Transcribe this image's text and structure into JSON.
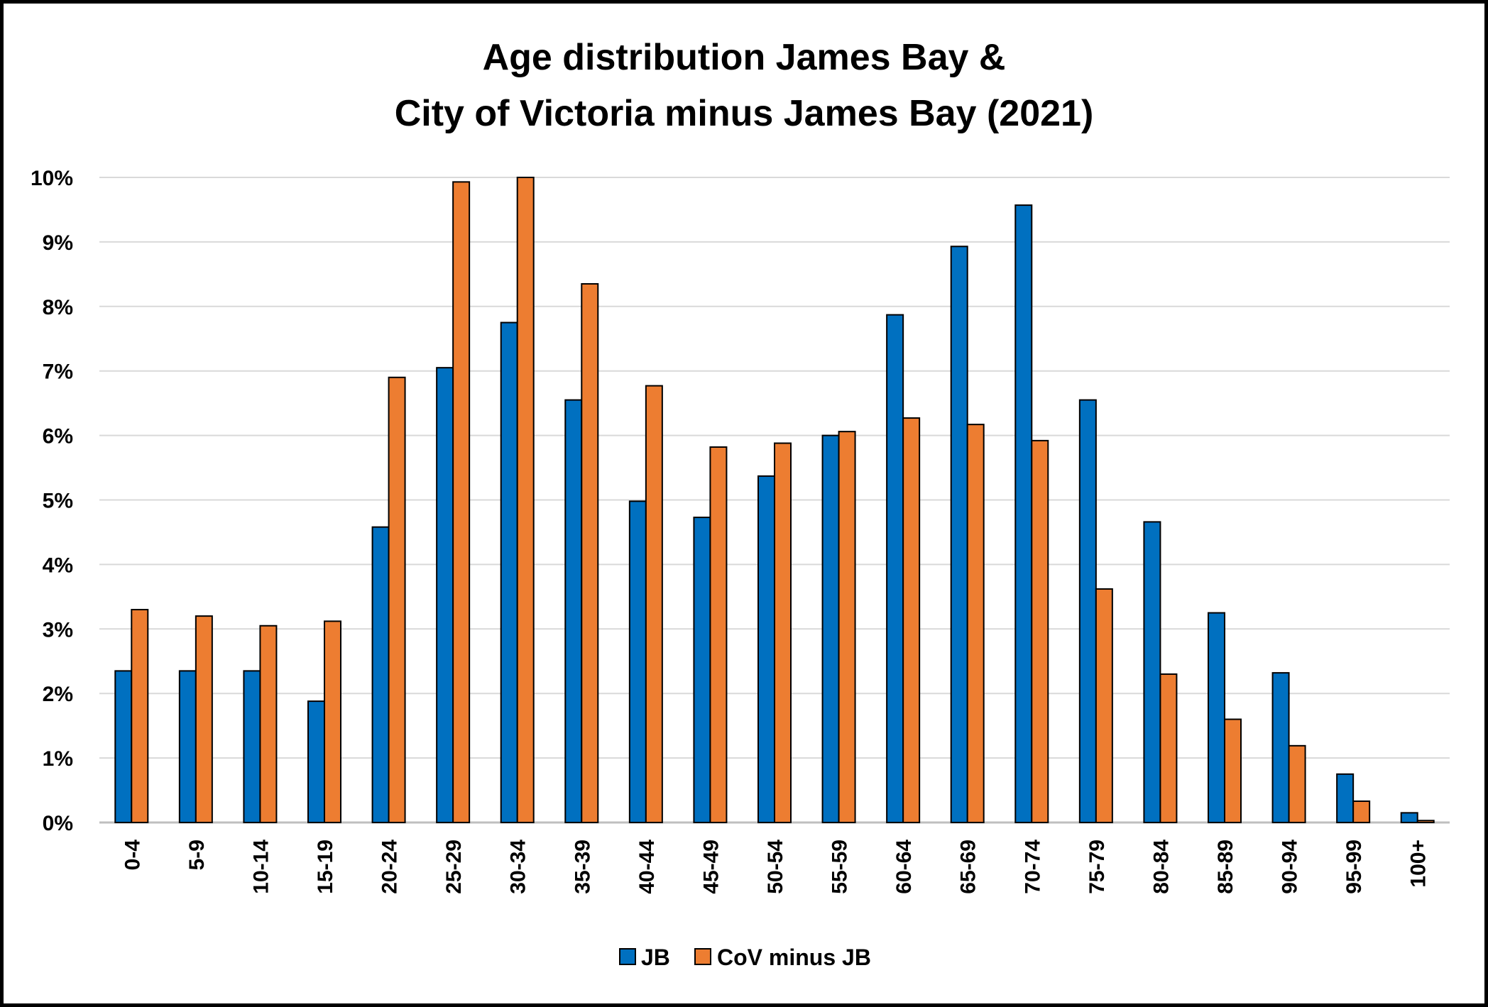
{
  "chart_data": {
    "type": "bar",
    "title": "Age distribution James Bay &",
    "subtitle": "City of Victoria minus James Bay (2021)",
    "xlabel": "",
    "ylabel": "",
    "ylim": [
      0,
      10
    ],
    "yticks": [
      "0%",
      "1%",
      "2%",
      "3%",
      "4%",
      "5%",
      "6%",
      "7%",
      "8%",
      "9%",
      "10%"
    ],
    "grid": true,
    "legend_position": "bottom",
    "categories": [
      "0-4",
      "5-9",
      "10-14",
      "15-19",
      "20-24",
      "25-29",
      "30-34",
      "35-39",
      "40-44",
      "45-49",
      "50-54",
      "55-59",
      "60-64",
      "65-69",
      "70-74",
      "75-79",
      "80-84",
      "85-89",
      "90-94",
      "95-99",
      "100+"
    ],
    "series": [
      {
        "name": "JB",
        "color": "#0070C0",
        "values": [
          2.35,
          2.35,
          2.35,
          1.88,
          4.58,
          7.05,
          7.75,
          6.55,
          4.98,
          4.73,
          5.37,
          6.0,
          7.87,
          8.93,
          9.57,
          6.55,
          4.66,
          3.25,
          2.32,
          0.75,
          0.15
        ]
      },
      {
        "name": "CoV minus JB",
        "color": "#ED7D31",
        "values": [
          3.3,
          3.2,
          3.05,
          3.12,
          6.9,
          9.93,
          10.0,
          8.35,
          6.77,
          5.82,
          5.88,
          6.06,
          6.27,
          6.17,
          5.92,
          3.62,
          2.3,
          1.6,
          1.19,
          0.33,
          0.03
        ]
      }
    ]
  }
}
